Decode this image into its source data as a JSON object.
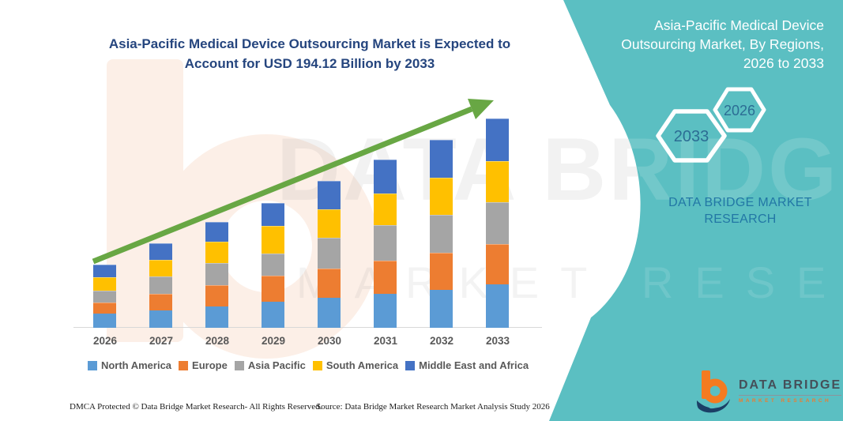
{
  "page": {
    "background": "#ffffff",
    "accent_teal": "#5bbfc2",
    "title_navy": "#25457e"
  },
  "main": {
    "title": "Asia-Pacific Medical Device Outsourcing Market is Expected to Account for USD 194.12 Billion by 2033",
    "footer_left": "DMCA Protected © Data Bridge Market Research-  All Rights Reserved.",
    "footer_right": "Source: Data Bridge Market Research  Market Analysis Study 2026"
  },
  "side_panel": {
    "title": "Asia-Pacific Medical Device Outsourcing Market, By Regions, 2026 to 2033",
    "hexagon_large": "2033",
    "hexagon_small": "2026",
    "brand_name": "DATA BRIDGE MARKET RESEARCH",
    "logo_title": "DATA BRIDGE",
    "logo_subtitle": "MARKET RESEARCH"
  },
  "watermarks": {
    "row1": "DATA BRIDGE",
    "row2": "MARKET RESEARCH"
  },
  "chart_data": {
    "type": "bar",
    "stacked": true,
    "unit": "USD Billion",
    "title": "Asia-Pacific Medical Device Outsourcing Market, By Regions, 2026 to 2033",
    "categories": [
      "2026",
      "2027",
      "2028",
      "2029",
      "2030",
      "2031",
      "2032",
      "2033"
    ],
    "series": [
      {
        "name": "North America",
        "color": "#5B9BD5",
        "values": [
          13.4,
          15.9,
          19.6,
          24.4,
          28.1,
          31.7,
          35.4,
          40.3
        ]
      },
      {
        "name": "Europe",
        "color": "#ED7D31",
        "values": [
          10.3,
          15.4,
          19.6,
          24.4,
          26.9,
          30.5,
          34.7,
          37.1
        ]
      },
      {
        "name": "Asia Pacific",
        "color": "#A5A5A5",
        "values": [
          11.3,
          16.3,
          20.7,
          20.7,
          28.6,
          33.0,
          34.9,
          39.0
        ]
      },
      {
        "name": "South America",
        "color": "#FFC000",
        "values": [
          12.7,
          15.4,
          19.6,
          25.6,
          26.4,
          29.3,
          34.7,
          38.1
        ]
      },
      {
        "name": "Middle East and Africa",
        "color": "#4472C4",
        "values": [
          11.5,
          15.6,
          18.3,
          21.2,
          26.4,
          31.3,
          35.4,
          39.6
        ]
      }
    ],
    "totals": [
      59.2,
      78.6,
      97.8,
      116.3,
      136.4,
      155.8,
      175.1,
      194.12
    ],
    "highlight_value_2033": "USD 194.12 Billion",
    "annotation": "green upward trend arrow",
    "legend_position": "bottom",
    "y_axis_visible": false,
    "grid": false,
    "ylim": [
      0,
      200
    ],
    "arrow_color": "#68a744"
  }
}
